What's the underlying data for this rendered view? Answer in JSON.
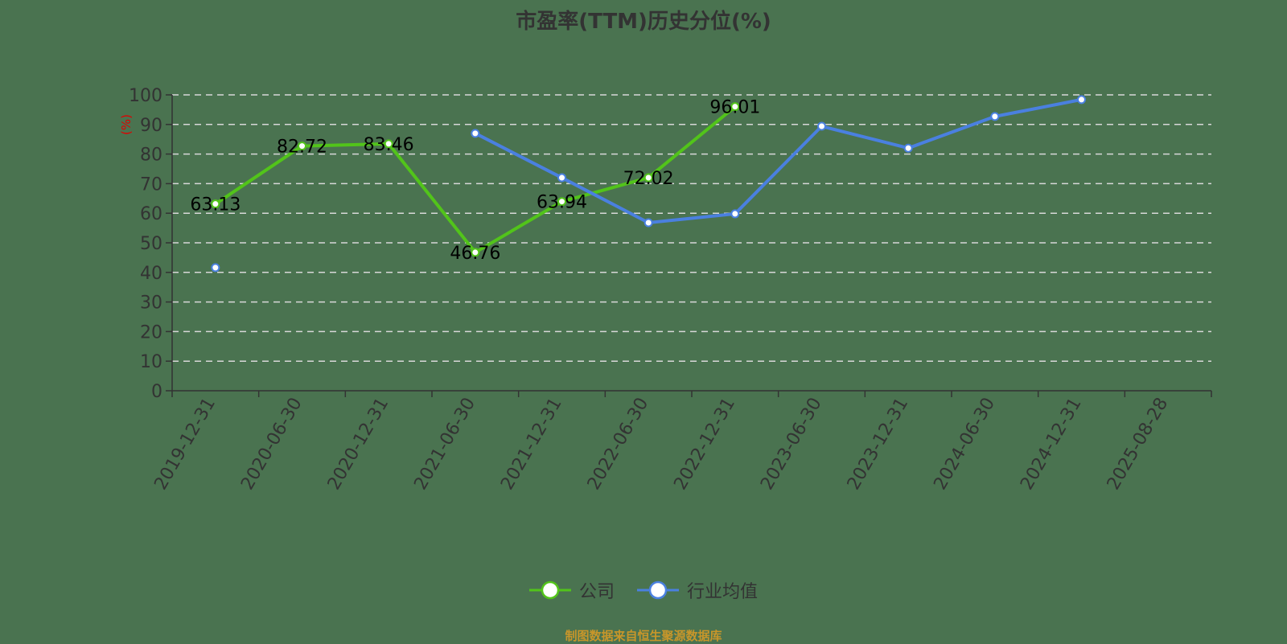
{
  "title": "市盈率(TTM)历史分位(%)",
  "source_note": "制图数据来自恒生聚源数据库",
  "legend": [
    {
      "label": "公司",
      "color": "#52c41a"
    },
    {
      "label": "行业均值",
      "color": "#4a80e0"
    }
  ],
  "chart_data": {
    "type": "line",
    "title": "市盈率(TTM)历史分位(%)",
    "xlabel": "",
    "ylabel": "(%)",
    "ylim": [
      0,
      100
    ],
    "yticks": [
      0,
      10,
      20,
      30,
      40,
      50,
      60,
      70,
      80,
      90,
      100
    ],
    "grid": true,
    "legend_position": "bottom",
    "categories": [
      "2019-12-31",
      "2020-06-30",
      "2020-12-31",
      "2021-06-30",
      "2021-12-31",
      "2022-06-30",
      "2022-12-31",
      "2023-06-30",
      "2023-12-31",
      "2024-06-30",
      "2024-12-31",
      "2025-08-28"
    ],
    "series": [
      {
        "name": "公司",
        "color": "#52c41a",
        "labels": true,
        "values": [
          63.13,
          82.72,
          83.46,
          46.76,
          63.94,
          72.02,
          96.01,
          null,
          null,
          null,
          null,
          null
        ]
      },
      {
        "name": "行业均值",
        "color": "#4a80e0",
        "labels": false,
        "values": [
          41.6,
          null,
          null,
          87.0,
          72.0,
          56.8,
          59.8,
          89.4,
          82.0,
          92.7,
          98.4,
          null
        ]
      }
    ]
  }
}
